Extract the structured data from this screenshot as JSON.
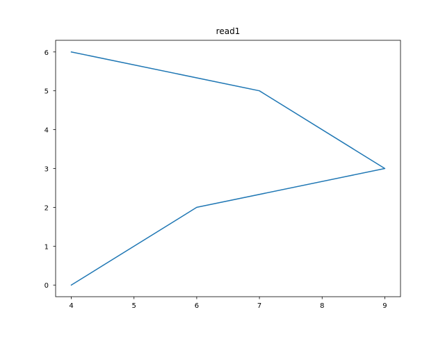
{
  "chart_data": {
    "type": "line",
    "title": "read1",
    "xlabel": "",
    "ylabel": "",
    "xlim": [
      3.75,
      9.25
    ],
    "ylim": [
      -0.3,
      6.3
    ],
    "xticks": [
      4,
      5,
      6,
      7,
      8,
      9
    ],
    "yticks": [
      0,
      1,
      2,
      3,
      4,
      5,
      6
    ],
    "grid": false,
    "series": [
      {
        "color": "#1f77b4",
        "x": [
          4,
          6,
          9,
          7,
          4
        ],
        "y": [
          0,
          2,
          3,
          5,
          6
        ]
      }
    ]
  }
}
